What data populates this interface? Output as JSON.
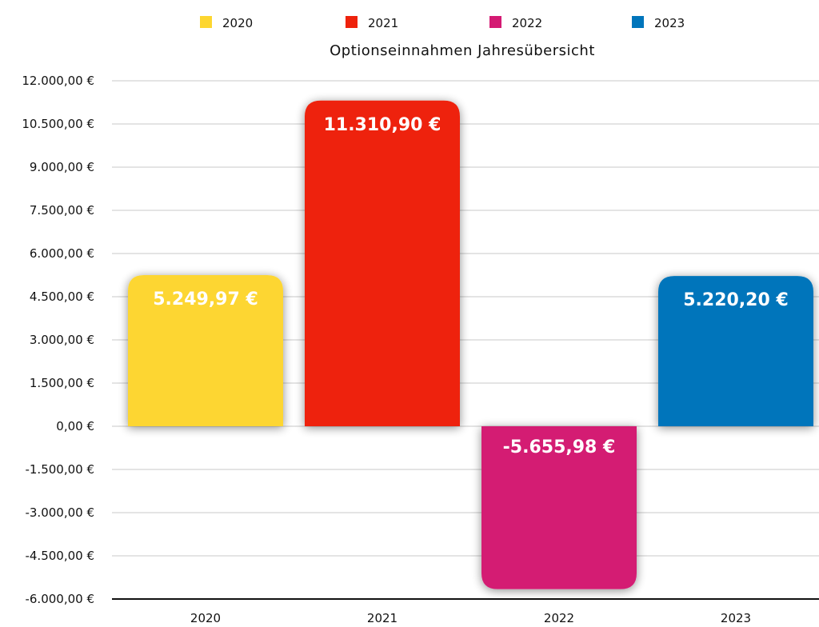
{
  "chart_data": {
    "type": "bar",
    "title": "Optionseinnahmen Jahresübersicht",
    "categories": [
      "2020",
      "2021",
      "2022",
      "2023"
    ],
    "values": [
      5249.97,
      11310.9,
      -5655.98,
      5220.2
    ],
    "data_labels": [
      "5.249,97 €",
      "11.310,90 €",
      "-5.655,98 €",
      "5.220,20 €"
    ],
    "colors": [
      "#FDD630",
      "#EE220C",
      "#D41A73",
      "#0075BB"
    ],
    "legend": [
      "2020",
      "2021",
      "2022",
      "2023"
    ],
    "legend_placement": "top",
    "ylim": [
      -6000,
      12000
    ],
    "yticks": [
      12000,
      10500,
      9000,
      7500,
      6000,
      4500,
      3000,
      1500,
      0,
      -1500,
      -3000,
      -4500,
      -6000
    ],
    "ytick_labels": [
      "12.000,00 €",
      "10.500,00 €",
      "9.000,00 €",
      "7.500,00 €",
      "6.000,00 €",
      "4.500,00 €",
      "3.000,00 €",
      "1.500,00 €",
      "0,00 €",
      "-1.500,00 €",
      "-3.000,00 €",
      "-4.500,00 €",
      "-6.000,00 €"
    ],
    "xlabel": "",
    "ylabel": "",
    "grid": true
  }
}
